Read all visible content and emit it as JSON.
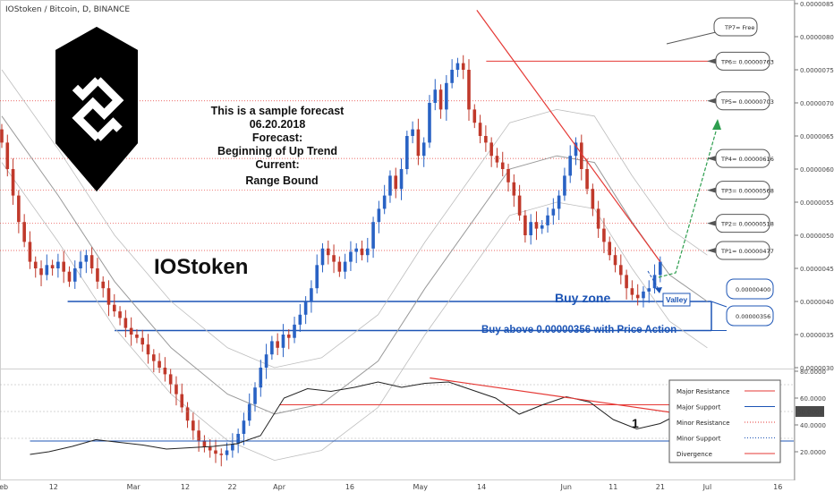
{
  "header": {
    "title": "IOStoken / Bitcoin, D, BINANCE"
  },
  "forecast_note": {
    "lines": [
      "This is a sample forecast",
      "06.20.2018",
      "Forecast:",
      "Beginning of Up Trend",
      "Current:",
      "Range Bound"
    ]
  },
  "symbol_label": "IOStoken",
  "zones": {
    "buy_zone_label": "Buy zone",
    "valley_label": "Valley",
    "buy_above_label": "Buy above 0.00000356 with Price Action",
    "upper_value": "0.00000400",
    "lower_value": "0.00000356"
  },
  "targets": [
    {
      "label": "TP7= Free"
    },
    {
      "label": "TP6= 0.00000763",
      "price": 7.63e-06
    },
    {
      "label": "TP5= 0.00000703",
      "price": 7.03e-06
    },
    {
      "label": "TP4= 0.00000616",
      "price": 6.16e-06
    },
    {
      "label": "TP3= 0.00000568",
      "price": 5.68e-06
    },
    {
      "label": "TP2= 0.00000518",
      "price": 5.18e-06
    },
    {
      "label": "TP1= 0.00000477",
      "price": 4.77e-06
    }
  ],
  "oscillator": {
    "marker": "1",
    "current_value": "50.0000"
  },
  "legend": {
    "items": [
      {
        "label": "Major Resistance",
        "color": "#e53935",
        "style": "solid"
      },
      {
        "label": "Major Support",
        "color": "#1c54b5",
        "style": "solid"
      },
      {
        "label": "Minor Resistance",
        "color": "#e53935",
        "style": "dotted"
      },
      {
        "label": "Minor Support",
        "color": "#1c54b5",
        "style": "dotted"
      },
      {
        "label": "Divergence",
        "color": "#e53935",
        "style": "solid"
      }
    ]
  },
  "colors": {
    "up_candle": "#2962c4",
    "down_candle": "#c0392b",
    "resistance": "#e53935",
    "support": "#1c54b5",
    "forecast_arrow": "#2e9e4f",
    "bands": "#999999"
  },
  "chart_data": {
    "type": "candlestick",
    "title": "IOStoken / Bitcoin, D, BINANCE",
    "y_axis": {
      "range": [
        3e-06,
        8.5e-06
      ],
      "ticks": [
        "0.00000850",
        "0.00000800",
        "0.00000750",
        "0.00000700",
        "0.00000650",
        "0.00000600",
        "0.00000550",
        "0.00000500",
        "0.00000450",
        "0.00000400",
        "0.00000350",
        "0.00000300"
      ],
      "ticks_num": [
        850,
        800,
        750,
        700,
        650,
        600,
        550,
        500,
        450,
        400,
        350,
        300
      ]
    },
    "x_axis": {
      "labels": [
        "Feb",
        "12",
        "Mar",
        "12",
        "22",
        "Apr",
        "16",
        "May",
        "14",
        "Jun",
        "11",
        "21",
        "Jul",
        "16"
      ],
      "label_days": [
        0,
        11,
        28,
        39,
        49,
        59,
        74,
        89,
        102,
        120,
        130,
        140,
        150,
        165
      ],
      "range_days": [
        0,
        168
      ]
    },
    "closes_e8": [
      640,
      600,
      560,
      520,
      490,
      460,
      450,
      440,
      455,
      450,
      460,
      445,
      430,
      450,
      460,
      470,
      450,
      430,
      420,
      395,
      385,
      375,
      360,
      350,
      345,
      335,
      320,
      310,
      300,
      290,
      275,
      260,
      240,
      220,
      205,
      190,
      180,
      175,
      170,
      168,
      175,
      185,
      200,
      220,
      245,
      270,
      300,
      320,
      340,
      330,
      350,
      345,
      365,
      380,
      400,
      420,
      455,
      480,
      470,
      460,
      445,
      460,
      475,
      480,
      470,
      480,
      520,
      540,
      560,
      590,
      570,
      600,
      650,
      660,
      620,
      640,
      700,
      720,
      690,
      730,
      750,
      760,
      750,
      690,
      670,
      650,
      640,
      620,
      610,
      600,
      580,
      560,
      530,
      500,
      520,
      510,
      515,
      530,
      540,
      560,
      590,
      620,
      640,
      600,
      570,
      540,
      510,
      490,
      470,
      455,
      440,
      420,
      410,
      405,
      415,
      420,
      440,
      460
    ],
    "ma_e8": [
      680,
      560,
      430,
      330,
      260,
      230,
      245,
      310,
      420,
      520,
      600,
      620,
      610,
      520,
      440,
      400
    ],
    "ma_day": [
      0,
      12,
      24,
      36,
      48,
      58,
      68,
      80,
      90,
      100,
      108,
      118,
      126,
      134,
      142,
      150
    ],
    "major_resistance_e8": [
      [
        101,
        840
      ],
      [
        140,
        460
      ]
    ],
    "major_support_e8": [
      [
        14,
        400
      ],
      [
        145,
        400
      ]
    ],
    "lower_support_e8": [
      [
        24,
        356
      ],
      [
        145,
        356
      ]
    ],
    "osc": {
      "range": [
        0,
        80
      ],
      "ticks": [
        "80.0000",
        "60.0000",
        "40.0000",
        "20.0000"
      ],
      "ticks_num": [
        80,
        60,
        40,
        20
      ],
      "values_day": [
        6,
        10,
        15,
        20,
        25,
        30,
        35,
        40,
        45,
        50,
        55,
        60,
        65,
        70,
        75,
        80,
        85,
        90,
        95,
        100,
        105,
        110,
        115,
        120,
        125,
        130,
        135,
        140,
        145
      ],
      "values": [
        18,
        20,
        24,
        29,
        27,
        25,
        22,
        23,
        24,
        26,
        32,
        60,
        67,
        65,
        68,
        72,
        68,
        71,
        72,
        66,
        60,
        48,
        55,
        61,
        57,
        44,
        37,
        41,
        50
      ],
      "support_level": 28,
      "resistance_level": 55,
      "divergence": [
        [
          91,
          75
        ],
        [
          145,
          48
        ]
      ],
      "hlines": [
        70,
        50,
        30
      ]
    }
  }
}
